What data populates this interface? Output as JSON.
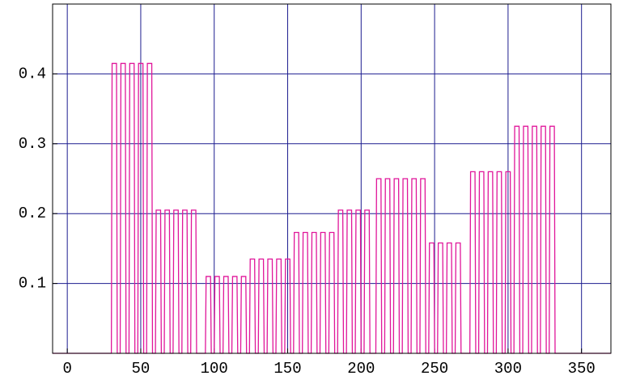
{
  "chart_data": {
    "type": "line",
    "color": "#e0169a",
    "grid_color": "#1c1c8f",
    "grid": true,
    "xlim": [
      -10,
      370
    ],
    "ylim": [
      0,
      0.5
    ],
    "xticks": [
      0,
      50,
      100,
      150,
      200,
      250,
      300,
      350
    ],
    "yticks": [
      0.1,
      0.2,
      0.3,
      0.4
    ],
    "x": [
      -10,
      30,
      30.5,
      33.5,
      34,
      36,
      36.5,
      39.5,
      40,
      42,
      42.5,
      45.5,
      46,
      48,
      48.5,
      51.5,
      52,
      54,
      54.5,
      57.5,
      58,
      60,
      60.5,
      63.5,
      64,
      66,
      66.5,
      69.5,
      70,
      72,
      72.5,
      75.5,
      76,
      78,
      78.5,
      81.5,
      82,
      84,
      84.5,
      87.5,
      88,
      94,
      94.5,
      97.5,
      98,
      100,
      100.5,
      103.5,
      104,
      106,
      106.5,
      109.5,
      110,
      112,
      112.5,
      115.5,
      116,
      118,
      118.5,
      121.5,
      122,
      124,
      124.5,
      127.5,
      128,
      130,
      130.5,
      133.5,
      134,
      136,
      136.5,
      139.5,
      140,
      142,
      142.5,
      145.5,
      146,
      148,
      148.5,
      151.5,
      152,
      154,
      154.5,
      157.5,
      158,
      160,
      160.5,
      163.5,
      164,
      166,
      166.5,
      169.5,
      170,
      172,
      172.5,
      175.5,
      176,
      178,
      178.5,
      181.5,
      182,
      184,
      184.5,
      187.5,
      188,
      190,
      190.5,
      193.5,
      194,
      196,
      196.5,
      199.5,
      200,
      202,
      202.5,
      205.5,
      206,
      210,
      210.5,
      213.5,
      214,
      216,
      216.5,
      219.5,
      220,
      222,
      222.5,
      225.5,
      226,
      228,
      228.5,
      231.5,
      232,
      234,
      234.5,
      237.5,
      238,
      240,
      240.5,
      243.5,
      244,
      246,
      246.5,
      249.5,
      250,
      252,
      252.5,
      255.5,
      256,
      258,
      258.5,
      261.5,
      262,
      264,
      264.5,
      267.5,
      268,
      274,
      274.5,
      277.5,
      278,
      280,
      280.5,
      283.5,
      284,
      286,
      286.5,
      289.5,
      290,
      292,
      292.5,
      295.5,
      296,
      298,
      298.5,
      301.5,
      302,
      304,
      304.5,
      307.5,
      308,
      310,
      310.5,
      313.5,
      314,
      316,
      316.5,
      319.5,
      320,
      322,
      322.5,
      325.5,
      326,
      328,
      328.5,
      331.5,
      332,
      370
    ],
    "values": [
      0,
      0,
      0.415,
      0.415,
      0,
      0,
      0.415,
      0.415,
      0,
      0,
      0.415,
      0.415,
      0,
      0,
      0.415,
      0.415,
      0,
      0,
      0.415,
      0.415,
      0,
      0,
      0.205,
      0.205,
      0,
      0,
      0.205,
      0.205,
      0,
      0,
      0.205,
      0.205,
      0,
      0,
      0.205,
      0.205,
      0,
      0,
      0.205,
      0.205,
      0,
      0,
      0.11,
      0.11,
      0,
      0,
      0.11,
      0.11,
      0,
      0,
      0.11,
      0.11,
      0,
      0,
      0.11,
      0.11,
      0,
      0,
      0.11,
      0.11,
      0,
      0,
      0.135,
      0.135,
      0,
      0,
      0.135,
      0.135,
      0,
      0,
      0.135,
      0.135,
      0,
      0,
      0.135,
      0.135,
      0,
      0,
      0.135,
      0.135,
      0,
      0,
      0.173,
      0.173,
      0,
      0,
      0.173,
      0.173,
      0,
      0,
      0.173,
      0.173,
      0,
      0,
      0.173,
      0.173,
      0,
      0,
      0.173,
      0.173,
      0,
      0,
      0.205,
      0.205,
      0,
      0,
      0.205,
      0.205,
      0,
      0,
      0.205,
      0.205,
      0,
      0,
      0.205,
      0.205,
      0,
      0,
      0.25,
      0.25,
      0,
      0,
      0.25,
      0.25,
      0,
      0,
      0.25,
      0.25,
      0,
      0,
      0.25,
      0.25,
      0,
      0,
      0.25,
      0.25,
      0,
      0,
      0.25,
      0.25,
      0,
      0,
      0.158,
      0.158,
      0,
      0,
      0.158,
      0.158,
      0,
      0,
      0.158,
      0.158,
      0,
      0,
      0.158,
      0.158,
      0,
      0,
      0.26,
      0.26,
      0,
      0,
      0.26,
      0.26,
      0,
      0,
      0.26,
      0.26,
      0,
      0,
      0.26,
      0.26,
      0,
      0,
      0.26,
      0.26,
      0,
      0,
      0.325,
      0.325,
      0,
      0,
      0.325,
      0.325,
      0,
      0,
      0.325,
      0.325,
      0,
      0,
      0.325,
      0.325,
      0,
      0,
      0.325,
      0.325,
      0,
      0
    ]
  }
}
